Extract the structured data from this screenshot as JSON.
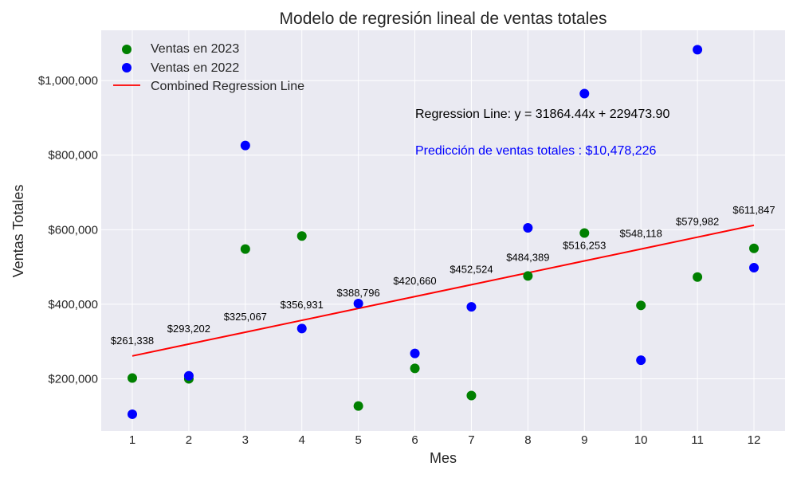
{
  "chart_data": {
    "type": "scatter",
    "title": "Modelo de regresión lineal de ventas totales",
    "xlabel": "Mes",
    "ylabel": "Ventas Totales",
    "x": [
      1,
      2,
      3,
      4,
      5,
      6,
      7,
      8,
      9,
      10,
      11,
      12
    ],
    "xlim": [
      0.45,
      12.55
    ],
    "ylim": [
      60000,
      1135000
    ],
    "xticks": [
      1,
      2,
      3,
      4,
      5,
      6,
      7,
      8,
      9,
      10,
      11,
      12
    ],
    "yticks": [
      200000,
      400000,
      600000,
      800000,
      1000000
    ],
    "ytick_labels": [
      "$200,000",
      "$400,000",
      "$600,000",
      "$800,000",
      "$1,000,000"
    ],
    "grid": true,
    "legend_position": "top-left",
    "series": [
      {
        "name": "Ventas en 2023",
        "color": "#008000",
        "values": [
          202000,
          200000,
          548000,
          583000,
          127000,
          228000,
          155000,
          476000,
          591000,
          397000,
          473000,
          550000
        ]
      },
      {
        "name": "Ventas en 2022",
        "color": "#0000ff",
        "values": [
          105000,
          208000,
          826000,
          335000,
          402000,
          268000,
          393000,
          605000,
          965000,
          250000,
          1083000,
          498000
        ]
      }
    ],
    "regression": {
      "name": "Combined Regression Line",
      "color": "#ff0000",
      "values": [
        261338,
        293202,
        325067,
        356931,
        388796,
        420660,
        452524,
        484389,
        516253,
        548118,
        579982,
        611847
      ],
      "labels": [
        "$261,338",
        "$293,202",
        "$325,067",
        "$356,931",
        "$388,796",
        "$420,660",
        "$452,524",
        "$484,389",
        "$516,253",
        "$548,118",
        "$579,982",
        "$611,847"
      ]
    },
    "annotations": [
      {
        "text": "Regression Line: y = 31864.44x + 229473.90",
        "color": "#000000"
      },
      {
        "text": "Predicción de ventas totales : $10,478,226",
        "color": "#0000ff"
      }
    ]
  }
}
